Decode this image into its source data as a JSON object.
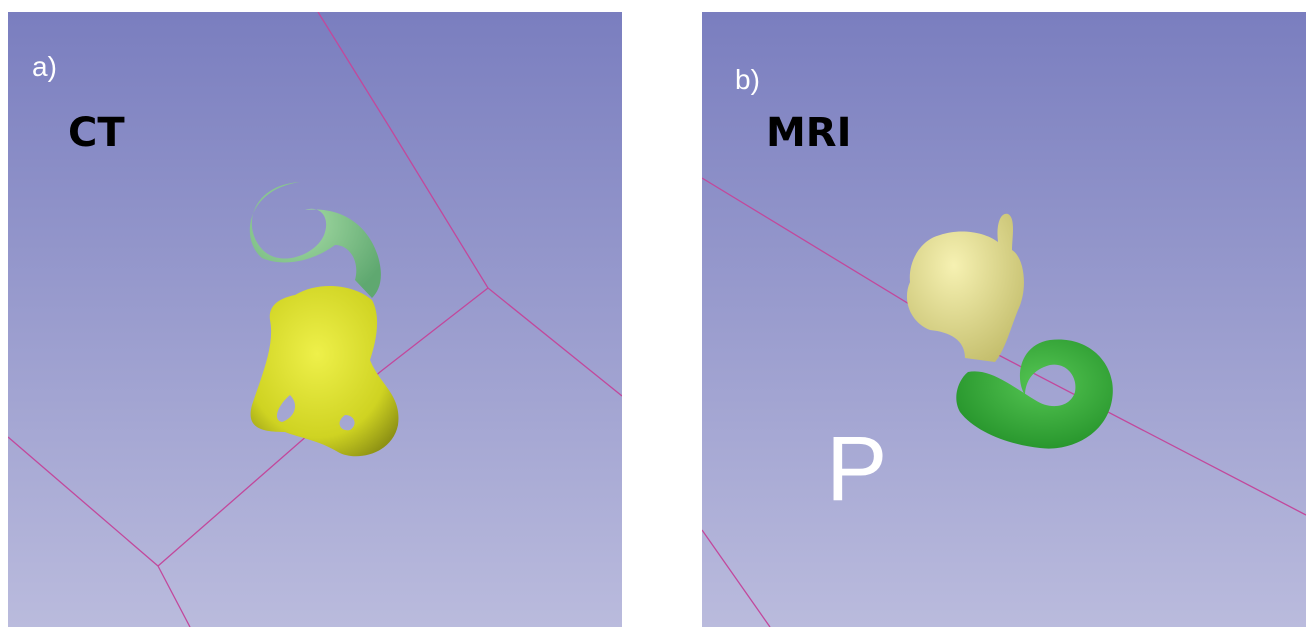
{
  "panels": [
    {
      "label": "a)",
      "modality": "CT"
    },
    {
      "label": "b)",
      "modality": "MRI",
      "orientation_marker": "P"
    }
  ]
}
